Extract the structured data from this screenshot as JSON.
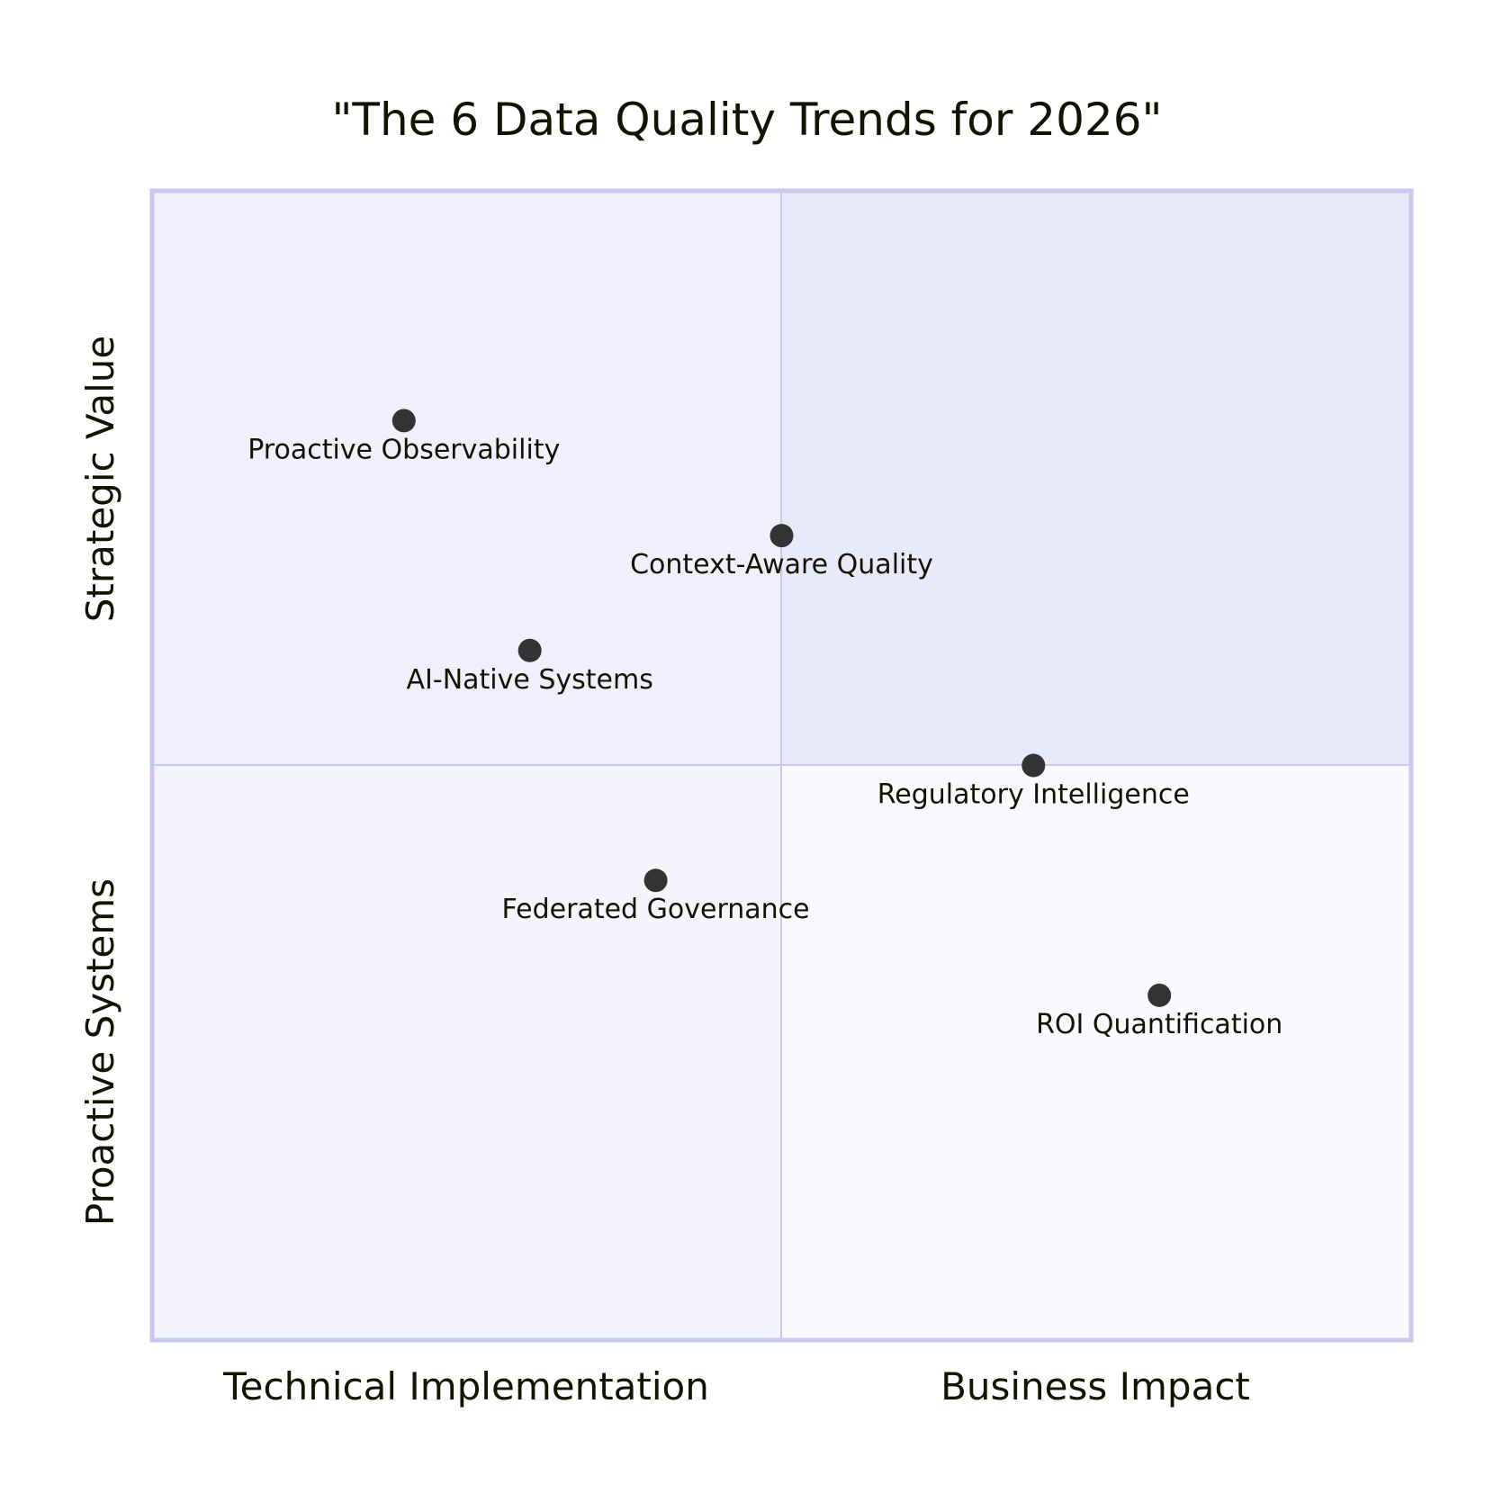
{
  "chart_data": {
    "type": "quadrant",
    "title": "\"The 6 Data Quality Trends for 2026\"",
    "x_axis": {
      "low": "Technical Implementation",
      "high": "Business Impact"
    },
    "y_axis": {
      "low": "Proactive Systems",
      "high": "Strategic Value"
    },
    "xlim": [
      0,
      1
    ],
    "ylim": [
      0,
      1
    ],
    "quadrant_colors": {
      "q1": "#e9e9fc",
      "q2": "#efeffd",
      "q3": "#f4f4fe",
      "q4": "#f9f9ff"
    },
    "border_color": "#c8c8f0",
    "point_color": "#333333",
    "points": [
      {
        "label": "Proactive Observability",
        "x": 0.2,
        "y": 0.8
      },
      {
        "label": "Context-Aware Quality",
        "x": 0.5,
        "y": 0.7
      },
      {
        "label": "AI-Native Systems",
        "x": 0.3,
        "y": 0.6
      },
      {
        "label": "Regulatory Intelligence",
        "x": 0.7,
        "y": 0.5
      },
      {
        "label": "Federated Governance",
        "x": 0.4,
        "y": 0.4
      },
      {
        "label": "ROI Quantification",
        "x": 0.8,
        "y": 0.3
      }
    ]
  }
}
